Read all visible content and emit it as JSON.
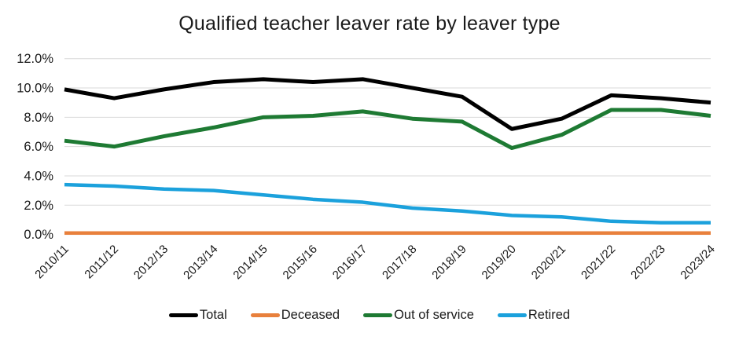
{
  "title": "Qualified teacher leaver rate by leaver type",
  "chart_data": {
    "type": "line",
    "title": "Qualified teacher leaver rate by leaver type",
    "categories": [
      "2010/11",
      "2011/12",
      "2012/13",
      "2013/14",
      "2014/15",
      "2015/16",
      "2016/17",
      "2017/18",
      "2018/19",
      "2019/20",
      "2020/21",
      "2021/22",
      "2022/23",
      "2023/24"
    ],
    "series": [
      {
        "name": "Total",
        "color": "#000000",
        "values": [
          9.9,
          9.3,
          9.9,
          10.4,
          10.6,
          10.4,
          10.6,
          10.0,
          9.4,
          7.2,
          7.9,
          9.5,
          9.3,
          9.0
        ]
      },
      {
        "name": "Deceased",
        "color": "#E8803C",
        "values": [
          0.1,
          0.1,
          0.1,
          0.1,
          0.1,
          0.1,
          0.1,
          0.1,
          0.1,
          0.1,
          0.1,
          0.1,
          0.1,
          0.1
        ]
      },
      {
        "name": "Out of service",
        "color": "#1E7A33",
        "values": [
          6.4,
          6.0,
          6.7,
          7.3,
          8.0,
          8.1,
          8.4,
          7.9,
          7.7,
          5.9,
          6.8,
          8.5,
          8.5,
          8.1
        ]
      },
      {
        "name": "Retired",
        "color": "#1BA1DC",
        "values": [
          3.4,
          3.3,
          3.1,
          3.0,
          2.7,
          2.4,
          2.2,
          1.8,
          1.6,
          1.3,
          1.2,
          0.9,
          0.8,
          0.8
        ]
      }
    ],
    "xlabel": "",
    "ylabel": "",
    "ylim": [
      0,
      12
    ],
    "ytick_step": 2,
    "ytick_labels": [
      "0.0%",
      "2.0%",
      "4.0%",
      "6.0%",
      "8.0%",
      "10.0%",
      "12.0%"
    ],
    "grid": "horizontal",
    "gridline_color": "#D9D9D9",
    "axis_text_color": "#1a1a1a",
    "legend_position": "bottom"
  }
}
